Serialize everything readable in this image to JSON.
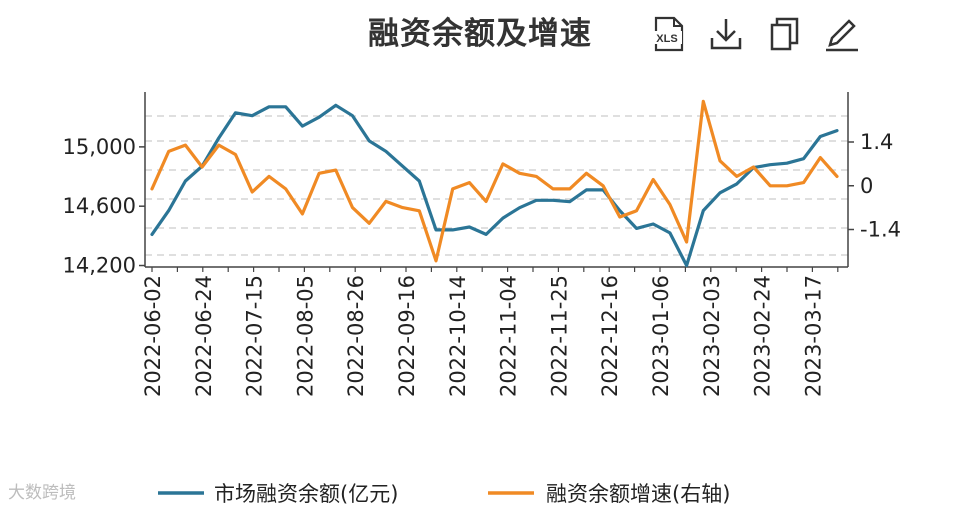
{
  "title": "融资余额及增速",
  "toolbar": {
    "xls_label": "XLS",
    "icons": [
      "xls-export-icon",
      "download-icon",
      "copy-icon",
      "edit-icon"
    ]
  },
  "watermark": "大数跨境",
  "colors": {
    "series1": "#2b7596",
    "series2": "#f08a24",
    "axis": "#444444",
    "grid": "#cccccc"
  },
  "chart_data": {
    "type": "line",
    "x_tick_labels": [
      "2022-06-02",
      "2022-06-24",
      "2022-07-15",
      "2022-08-05",
      "2022-08-26",
      "2022-09-16",
      "2022-10-14",
      "2022-11-04",
      "2022-11-25",
      "2022-12-16",
      "2023-01-06",
      "2023-02-03",
      "2023-02-24",
      "2023-03-17"
    ],
    "y_left": {
      "ticks": [
        14200,
        14600,
        15000
      ],
      "tick_labels": [
        "14,200",
        "14,600",
        "15,000"
      ],
      "range": [
        14190,
        15370
      ]
    },
    "y_right": {
      "ticks": [
        -1.4,
        0,
        1.4
      ],
      "tick_labels": [
        "-1.4",
        "0",
        "1.4"
      ],
      "range": [
        -2.6,
        3.0
      ]
    },
    "grid": true,
    "legend_position": "bottom",
    "series": [
      {
        "name": "市场融资余额(亿元)",
        "axis": "left",
        "values": [
          14410,
          14570,
          14770,
          14870,
          15060,
          15230,
          15210,
          15270,
          15270,
          15140,
          15200,
          15280,
          15210,
          15040,
          14970,
          14870,
          14770,
          14440,
          14440,
          14460,
          14410,
          14520,
          14590,
          14640,
          14640,
          14630,
          14710,
          14710,
          14570,
          14450,
          14480,
          14420,
          14200,
          14570,
          14690,
          14750,
          14860,
          14880,
          14890,
          14920,
          15070,
          15110
        ]
      },
      {
        "name": "融资余额增速(右轴)",
        "axis": "right",
        "values": [
          -0.1,
          1.1,
          1.3,
          0.6,
          1.3,
          1.0,
          -0.2,
          0.3,
          -0.1,
          -0.9,
          0.4,
          0.5,
          -0.7,
          -1.2,
          -0.5,
          -0.7,
          -0.8,
          -2.4,
          -0.1,
          0.1,
          -0.5,
          0.7,
          0.4,
          0.3,
          -0.1,
          -0.1,
          0.4,
          0.0,
          -1.0,
          -0.8,
          0.2,
          -0.6,
          -1.8,
          2.7,
          0.8,
          0.3,
          0.6,
          0.0,
          0.0,
          0.1,
          0.9,
          0.3
        ]
      }
    ]
  }
}
